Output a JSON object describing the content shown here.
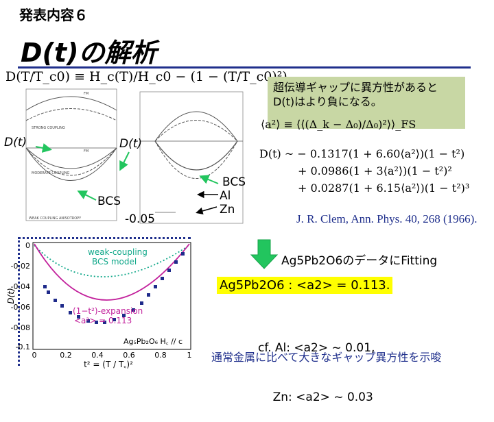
{
  "kicker": "発表内容６",
  "title": "D(t)の解析",
  "formula_top": "D(T/T_c0) ≡ H_c(T)/H_c0 − (1 − (T/T_c0)²)",
  "note": {
    "line1": "超伝導ギャップに異方性があると",
    "line2": "D(t)はより負になる。"
  },
  "a2_definition": "⟨a²⟩ ≡ ⟨⟨(Δ_k − Δ₀)/Δ₀)²⟩⟩_FS",
  "dt_formula": {
    "l1": "D(t) ~ − 0.1317(1 + 6.60⟨a²⟩)(1 − t²)",
    "l2": "+ 0.0986(1 + 3⟨a²⟩)(1 − t²)²",
    "l3": "+ 0.0287(1 + 6.15⟨a²⟩)(1 − t²)³"
  },
  "annotations": {
    "dt_left": "D(t)",
    "dt_mid": "D(t)",
    "bcs_left": "BCS",
    "minus_005": "-0.05",
    "bcs_right": "BCS",
    "al": "Al",
    "zn": "Zn"
  },
  "reference": "J. R. Clem, Ann. Phys. 40, 268 (1966).",
  "fit_label": "Ag5Pb2O6のデータにFitting",
  "result": "Ag5Pb2O6 : <a2> = 0.113.",
  "cf": {
    "l1": "cf. Al: <a2> ~ 0.01,",
    "l2": "    Zn: <a2> ~ 0.03"
  },
  "bottom_note": "通常金属に比べて大きなギャップ異方性を示唆",
  "left_plot": {
    "labels": [
      "STRONG COUPLING",
      "MODERATE COUPLING",
      "WEAK COUPLING ANISOTROPY"
    ],
    "legend": [
      "FM",
      "FM"
    ]
  },
  "bottom_plot": {
    "ylabel": "D(t)",
    "xlabel": "t² = (T / T꜀)²",
    "label_bcs1": "weak-coupling",
    "label_bcs2": "BCS model",
    "label_exp1": "(1−t²)-expansion",
    "label_exp2": "<a²> = 0.113",
    "label_sample": "Ag₅Pb₂O₆ H꜀ // c",
    "yticks": [
      "0",
      "-0.02",
      "-0.04",
      "-0.06",
      "-0.08",
      "-0.1"
    ],
    "xticks": [
      "0",
      "0.2",
      "0.4",
      "0.6",
      "0.8",
      "1"
    ]
  },
  "colors": {
    "title_rule": "#1f2f8c",
    "note_bg": "#c8d7a4",
    "result_bg": "#ffff00",
    "arrow": "#22c55e",
    "bcs_curve": "#11a88a",
    "exp_curve": "#c21f9b",
    "data": "#1e2a8a",
    "text_blue": "#1f2f8c"
  }
}
